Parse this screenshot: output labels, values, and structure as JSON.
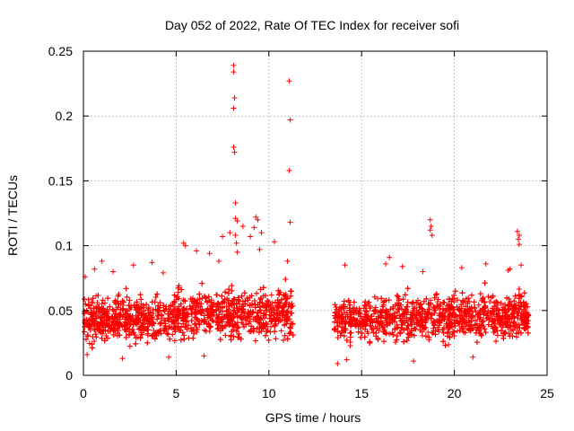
{
  "chart_data": {
    "type": "scatter",
    "title": "Day 052 of 2022, Rate Of TEC Index for receiver sofi",
    "xlabel": "GPS time / hours",
    "ylabel": "ROTI / TECUs",
    "xlim": [
      0,
      25
    ],
    "ylim": [
      0,
      0.25
    ],
    "xticks": [
      0,
      5,
      10,
      15,
      20,
      25
    ],
    "yticks": [
      0,
      0.05,
      0.1,
      0.15,
      0.2,
      0.25
    ],
    "xtick_labels": [
      "0",
      "5",
      "10",
      "15",
      "20",
      "25"
    ],
    "ytick_labels": [
      "0",
      "0.05",
      "0.1",
      "0.15",
      "0.2",
      "0.25"
    ],
    "grid": true,
    "marker": "+",
    "color": "#ff0000",
    "data_gap_hours": [
      11.3,
      13.5
    ],
    "bulk_range": [
      0.015,
      0.07
    ],
    "series": [
      {
        "name": "ROTI",
        "outliers": [
          [
            8.1,
            0.239
          ],
          [
            8.1,
            0.234
          ],
          [
            8.15,
            0.214
          ],
          [
            8.1,
            0.206
          ],
          [
            8.1,
            0.176
          ],
          [
            8.15,
            0.172
          ],
          [
            8.2,
            0.133
          ],
          [
            8.2,
            0.121
          ],
          [
            8.3,
            0.119
          ],
          [
            8.2,
            0.108
          ],
          [
            8.25,
            0.102
          ],
          [
            8.3,
            0.095
          ],
          [
            11.1,
            0.227
          ],
          [
            11.15,
            0.197
          ],
          [
            11.1,
            0.158
          ],
          [
            11.15,
            0.118
          ],
          [
            9.3,
            0.122
          ],
          [
            9.4,
            0.12
          ],
          [
            9.2,
            0.114
          ],
          [
            9.6,
            0.11
          ],
          [
            7.5,
            0.107
          ],
          [
            7.9,
            0.11
          ],
          [
            8.6,
            0.115
          ],
          [
            9.0,
            0.107
          ],
          [
            10.3,
            0.103
          ],
          [
            9.5,
            0.097
          ],
          [
            5.4,
            0.102
          ],
          [
            5.5,
            0.1
          ],
          [
            6.1,
            0.096
          ],
          [
            6.8,
            0.094
          ],
          [
            7.3,
            0.088
          ],
          [
            11.0,
            0.088
          ],
          [
            1.0,
            0.088
          ],
          [
            2.7,
            0.085
          ],
          [
            3.7,
            0.087
          ],
          [
            0.6,
            0.082
          ],
          [
            1.6,
            0.08
          ],
          [
            4.3,
            0.079
          ],
          [
            0.1,
            0.076
          ],
          [
            16.5,
            0.091
          ],
          [
            16.3,
            0.086
          ],
          [
            17.2,
            0.084
          ],
          [
            14.1,
            0.085
          ],
          [
            18.3,
            0.08
          ],
          [
            20.4,
            0.083
          ],
          [
            21.7,
            0.086
          ],
          [
            23.0,
            0.082
          ],
          [
            23.6,
            0.085
          ],
          [
            22.9,
            0.081
          ],
          [
            18.7,
            0.12
          ],
          [
            18.75,
            0.115
          ],
          [
            18.7,
            0.112
          ],
          [
            18.8,
            0.108
          ],
          [
            23.4,
            0.111
          ],
          [
            23.5,
            0.108
          ],
          [
            23.45,
            0.105
          ],
          [
            23.5,
            0.101
          ],
          [
            0.2,
            0.016
          ],
          [
            2.1,
            0.013
          ],
          [
            4.6,
            0.014
          ],
          [
            6.5,
            0.015
          ],
          [
            13.7,
            0.009
          ],
          [
            14.2,
            0.012
          ],
          [
            17.8,
            0.011
          ],
          [
            21.0,
            0.014
          ]
        ]
      }
    ]
  }
}
